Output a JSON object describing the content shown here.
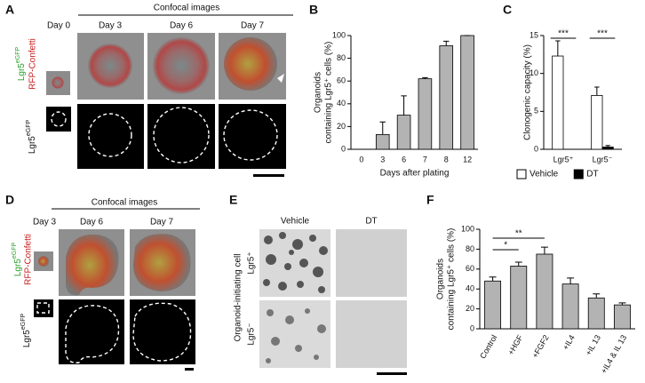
{
  "panel_A": {
    "label": "A",
    "header": "Confocal images",
    "days": [
      "Day 0",
      "Day 3",
      "Day 6",
      "Day 7"
    ],
    "green_label": {
      "base": "Lgr5",
      "sup": "eGFP"
    },
    "red_label": "RFP-Confetti",
    "bottom_label": {
      "base": "Lgr5",
      "sup": "eGFP"
    }
  },
  "panel_D": {
    "label": "D",
    "header": "Confocal images",
    "days": [
      "Day 3",
      "Day 6",
      "Day 7"
    ],
    "green_label": {
      "base": "Lgr5",
      "sup": "eGFP"
    },
    "red_label": "RFP-Confetti",
    "bottom_label": {
      "base": "Lgr5",
      "sup": "eGFP"
    }
  },
  "panel_E": {
    "label": "E",
    "columns": [
      "Vehicle",
      "DT"
    ],
    "row_title": "Organoid-initiating cell",
    "rows": [
      "Lgr5⁺",
      "Lgr5⁻"
    ]
  },
  "chart_data": [
    {
      "type": "bar",
      "panel": "B",
      "ylabel": [
        "Organoids",
        "containing Lgr5⁺ cells (%)"
      ],
      "xlabel": "Days after plating",
      "categories": [
        "0",
        "3",
        "6",
        "7",
        "8",
        "12"
      ],
      "values": [
        0,
        13,
        30,
        62,
        91,
        100
      ],
      "errors": [
        0,
        11,
        17,
        1,
        4,
        0
      ],
      "color": "#b3b3b3",
      "ylim": [
        0,
        100
      ],
      "yticks": [
        0,
        20,
        40,
        60,
        80,
        100
      ]
    },
    {
      "type": "bar",
      "panel": "C",
      "ylabel": [
        "Clonogenic capacity (%)"
      ],
      "categories": [
        "Lgr5⁺",
        "Lgr5⁻"
      ],
      "series": [
        {
          "name": "Vehicle",
          "color": "#ffffff",
          "values": [
            12.3,
            7.1
          ],
          "errors": [
            2,
            1.1
          ]
        },
        {
          "name": "DT",
          "color": "#000000",
          "values": [
            0,
            0.3
          ],
          "errors": [
            0,
            0.2
          ]
        }
      ],
      "annotations": [
        "***",
        "***"
      ],
      "ylim": [
        0,
        15
      ],
      "yticks": [
        0,
        5,
        10,
        15
      ]
    },
    {
      "type": "bar",
      "panel": "F",
      "ylabel": [
        "Organoids",
        "containing Lgr5⁺ cells (%)"
      ],
      "categories": [
        "Control",
        "+HGF",
        "+FGF2",
        "+IL4",
        "+IL 13",
        "+IL4 & IL 13"
      ],
      "values": [
        48,
        63,
        75,
        45,
        31,
        24
      ],
      "errors": [
        4,
        4,
        7,
        6,
        4,
        2
      ],
      "color": "#b3b3b3",
      "annotations": [
        "*",
        "**"
      ],
      "ylim": [
        0,
        100
      ],
      "yticks": [
        0,
        20,
        40,
        60,
        80,
        100
      ]
    }
  ]
}
